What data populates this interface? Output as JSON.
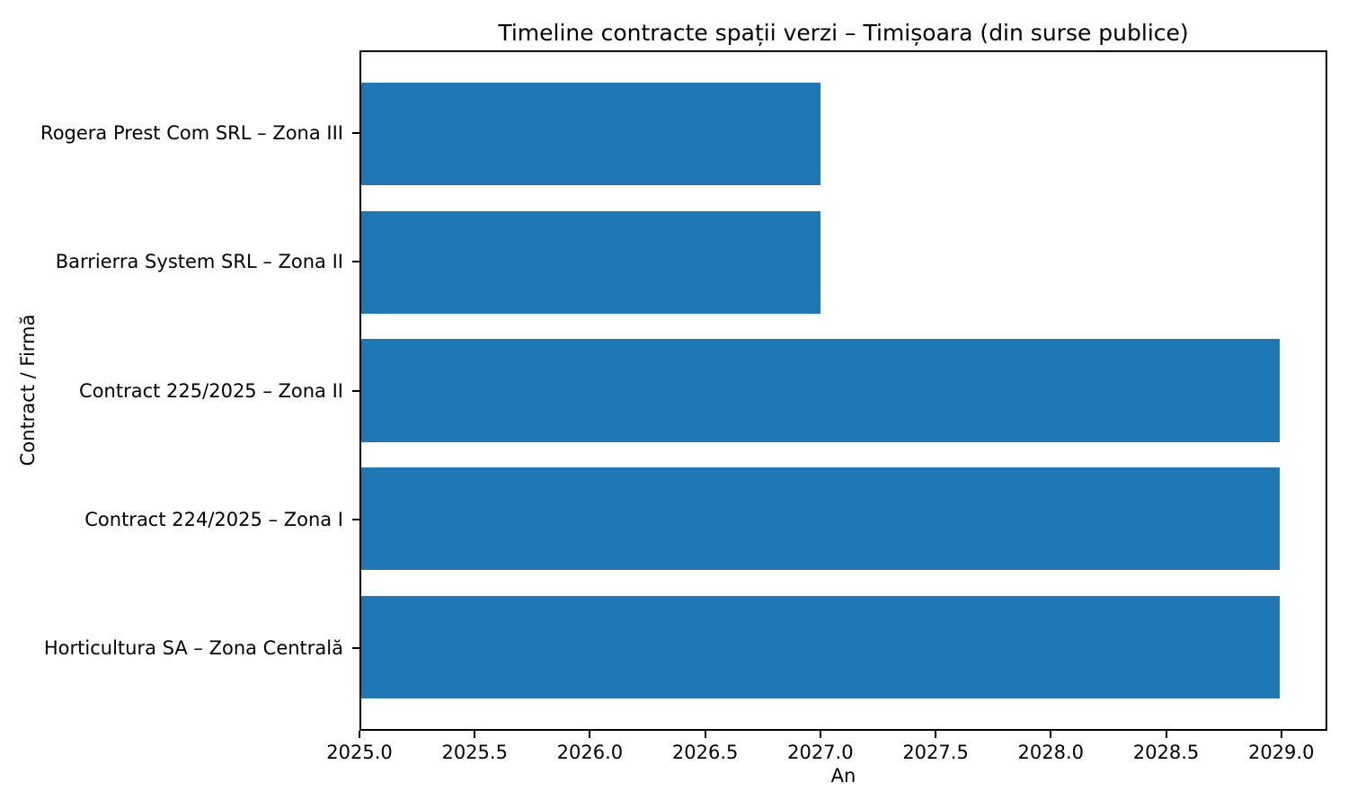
{
  "chart_data": {
    "type": "bar",
    "orientation": "horizontal",
    "title": "Timeline contracte spații verzi – Timișoara (din surse publice)",
    "xlabel": "An",
    "ylabel": "Contract / Firmă",
    "categories_order": "top-to-bottom",
    "categories": [
      "Rogera Prest Com SRL – Zona III",
      "Barrierra System SRL – Zona II",
      "Contract 225/2025 – Zona II",
      "Contract 224/2025 – Zona I",
      "Horticultura SA – Zona Centrală"
    ],
    "bar_starts": [
      2025,
      2025,
      2025,
      2025,
      2025
    ],
    "bar_ends": [
      2027,
      2027,
      2029,
      2029,
      2029
    ],
    "xlim": [
      2025.0,
      2029.2
    ],
    "ylim": [
      -0.64,
      4.64
    ],
    "bar_height_units": 0.8,
    "x_ticks": [
      2025.0,
      2025.5,
      2026.0,
      2026.5,
      2027.0,
      2027.5,
      2028.0,
      2028.5,
      2029.0
    ],
    "x_tick_labels": [
      "2025.0",
      "2025.5",
      "2026.0",
      "2026.5",
      "2027.0",
      "2027.5",
      "2028.0",
      "2028.5",
      "2029.0"
    ],
    "bar_color": "#1f77b4",
    "axis_color": "#000000",
    "grid": false,
    "legend": null
  }
}
